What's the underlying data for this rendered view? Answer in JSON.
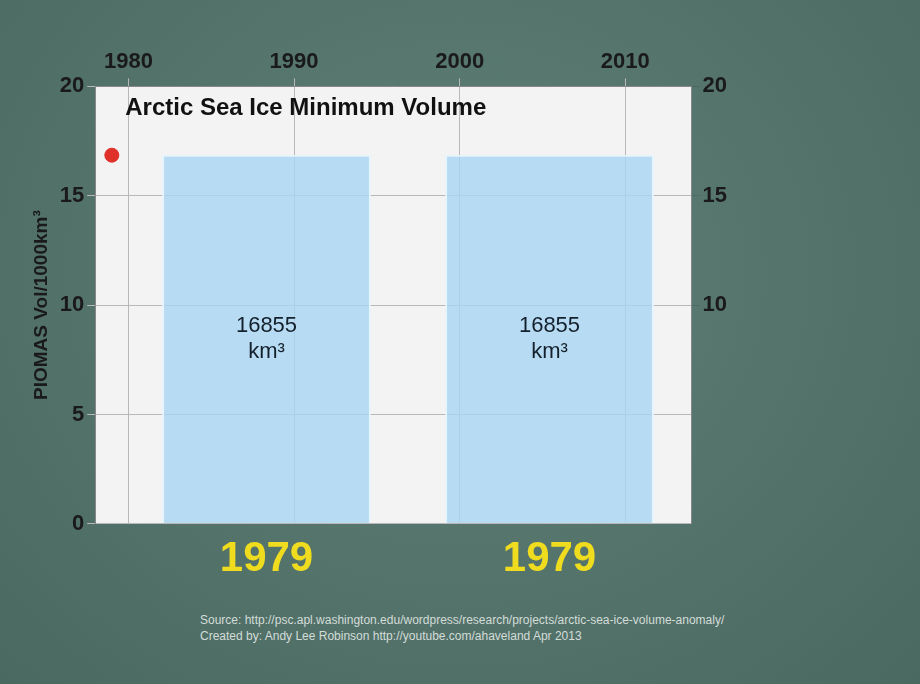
{
  "chart_data": [
    {
      "type": "scatter",
      "title": "Arctic Sea Ice Minimum Volume",
      "y_label": "PIOMAS Vol/1000km³",
      "x": [
        1979
      ],
      "values": [
        16.855
      ],
      "color": "#e0302a",
      "marker": "circle",
      "xlim": [
        1978,
        2014
      ],
      "xticks": [
        1980,
        1990,
        2000,
        2010
      ],
      "ylim": [
        0,
        20
      ],
      "yticks": [
        0,
        5,
        10,
        15,
        20
      ],
      "y2lim": [
        0,
        20
      ],
      "y2ticks": [
        10,
        15,
        20
      ],
      "grid": true,
      "annotations": [
        "Source: http://psc.apl.washington.edu/wordpress/research/projects/arctic-sea-ice-volume-anomaly/",
        "Created by: Andy Lee Robinson http://youtube.com/ahaveland Apr 2013"
      ]
    },
    {
      "type": "bar",
      "categories": [
        "1979",
        "1979"
      ],
      "values": [
        16.855,
        16.855
      ],
      "value_labels": [
        "16855 km³",
        "16855 km³"
      ],
      "data_labels": true,
      "color": "#a9d6f2",
      "ylim": [
        0,
        20
      ],
      "tick_labels": "x",
      "grid": false
    }
  ]
}
